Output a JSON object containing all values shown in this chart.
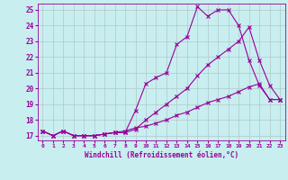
{
  "xlabel": "Windchill (Refroidissement éolien,°C)",
  "bg_color": "#c8eef0",
  "line_color": "#990099",
  "grid_color": "#b0c8c8",
  "xlim": [
    -0.5,
    23.5
  ],
  "ylim": [
    16.7,
    25.4
  ],
  "xticks": [
    0,
    1,
    2,
    3,
    4,
    5,
    6,
    7,
    8,
    9,
    10,
    11,
    12,
    13,
    14,
    15,
    16,
    17,
    18,
    19,
    20,
    21,
    22,
    23
  ],
  "yticks": [
    17,
    18,
    19,
    20,
    21,
    22,
    23,
    24,
    25
  ],
  "line1_x": [
    0,
    1,
    2,
    3,
    4,
    5,
    6,
    7,
    8,
    9,
    10,
    11,
    12,
    13,
    14,
    15,
    16,
    17,
    18,
    19,
    20,
    21,
    22,
    23
  ],
  "line1_y": [
    17.3,
    17.0,
    17.3,
    17.0,
    17.0,
    17.0,
    17.1,
    17.2,
    17.2,
    18.6,
    20.3,
    20.7,
    21.0,
    22.8,
    23.3,
    25.2,
    24.6,
    25.0,
    25.0,
    24.0,
    21.8,
    20.2,
    19.3,
    19.3
  ],
  "line2_x": [
    0,
    1,
    2,
    3,
    4,
    5,
    6,
    7,
    8,
    9,
    10,
    11,
    12,
    13,
    14,
    15,
    16,
    17,
    18,
    19,
    20,
    21,
    22,
    23
  ],
  "line2_y": [
    17.3,
    17.0,
    17.3,
    17.0,
    17.0,
    17.0,
    17.1,
    17.2,
    17.3,
    17.5,
    17.6,
    17.8,
    18.0,
    18.3,
    18.5,
    18.8,
    19.1,
    19.3,
    19.5,
    19.8,
    20.1,
    20.3,
    19.3,
    19.3
  ],
  "line3_x": [
    0,
    1,
    2,
    3,
    4,
    5,
    6,
    7,
    8,
    9,
    10,
    11,
    12,
    13,
    14,
    15,
    16,
    17,
    18,
    19,
    20,
    21,
    22,
    23
  ],
  "line3_y": [
    17.3,
    17.0,
    17.3,
    17.0,
    17.0,
    17.0,
    17.1,
    17.2,
    17.2,
    17.4,
    18.0,
    18.5,
    19.0,
    19.5,
    20.0,
    20.8,
    21.5,
    22.0,
    22.5,
    23.0,
    23.9,
    21.8,
    20.2,
    19.3
  ]
}
